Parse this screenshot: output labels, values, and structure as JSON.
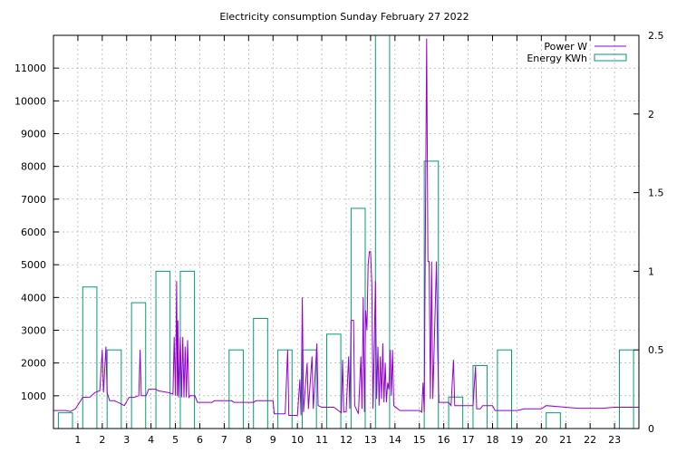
{
  "chart_data": {
    "type": "bar+line",
    "title": "Electricity consumption Sunday February 27 2022",
    "x": {
      "range": [
        0,
        24
      ],
      "ticks": [
        1,
        2,
        3,
        4,
        5,
        6,
        7,
        8,
        9,
        10,
        11,
        12,
        13,
        14,
        15,
        16,
        17,
        18,
        19,
        20,
        21,
        22,
        23
      ],
      "tick_labels": [
        "1",
        "2",
        "3",
        "4",
        "5",
        "6",
        "7",
        "8",
        "9",
        "10",
        "11",
        "12",
        "13",
        "14",
        "15",
        "16",
        "17",
        "18",
        "19",
        "20",
        "21",
        "22",
        "23"
      ]
    },
    "y_left": {
      "range": [
        0,
        12000
      ],
      "ticks": [
        1000,
        2000,
        3000,
        4000,
        5000,
        6000,
        7000,
        8000,
        9000,
        10000,
        11000
      ],
      "tick_labels": [
        "1000",
        "2000",
        "3000",
        "4000",
        "5000",
        "6000",
        "7000",
        "8000",
        "9000",
        "10000",
        "11000"
      ]
    },
    "y_right": {
      "range": [
        0,
        2.5
      ],
      "ticks": [
        0,
        0.5,
        1,
        1.5,
        2,
        2.5
      ],
      "tick_labels": [
        "0",
        "0.5",
        "1",
        "1.5",
        "2",
        "2.5"
      ]
    },
    "grid": true,
    "legend_position": "top-right",
    "series": [
      {
        "name": "Power W",
        "axis": "left",
        "color": "#9400d3",
        "points": [
          [
            0,
            550
          ],
          [
            0.5,
            550
          ],
          [
            0.7,
            520
          ],
          [
            0.9,
            600
          ],
          [
            1.2,
            950
          ],
          [
            1.5,
            960
          ],
          [
            1.7,
            1100
          ],
          [
            1.9,
            1150
          ],
          [
            2.0,
            2400
          ],
          [
            2.05,
            1100
          ],
          [
            2.15,
            2500
          ],
          [
            2.2,
            1100
          ],
          [
            2.3,
            850
          ],
          [
            2.5,
            850
          ],
          [
            2.7,
            780
          ],
          [
            2.9,
            700
          ],
          [
            3.1,
            950
          ],
          [
            3.3,
            950
          ],
          [
            3.5,
            1000
          ],
          [
            3.55,
            2400
          ],
          [
            3.6,
            1000
          ],
          [
            3.8,
            1000
          ],
          [
            3.9,
            1200
          ],
          [
            4.2,
            1200
          ],
          [
            4.3,
            1150
          ],
          [
            4.7,
            1100
          ],
          [
            4.9,
            1050
          ],
          [
            4.95,
            2800
          ],
          [
            5.0,
            1000
          ],
          [
            5.05,
            4500
          ],
          [
            5.08,
            1000
          ],
          [
            5.1,
            3300
          ],
          [
            5.13,
            950
          ],
          [
            5.2,
            2800
          ],
          [
            5.25,
            950
          ],
          [
            5.3,
            2800
          ],
          [
            5.35,
            950
          ],
          [
            5.4,
            2500
          ],
          [
            5.45,
            950
          ],
          [
            5.5,
            2700
          ],
          [
            5.55,
            950
          ],
          [
            5.6,
            1000
          ],
          [
            5.8,
            1000
          ],
          [
            5.9,
            800
          ],
          [
            6.5,
            800
          ],
          [
            6.6,
            850
          ],
          [
            7.3,
            850
          ],
          [
            7.4,
            800
          ],
          [
            8.2,
            800
          ],
          [
            8.3,
            850
          ],
          [
            9.0,
            850
          ],
          [
            9.05,
            450
          ],
          [
            9.5,
            450
          ],
          [
            9.6,
            2400
          ],
          [
            9.65,
            400
          ],
          [
            10.0,
            400
          ],
          [
            10.1,
            1500
          ],
          [
            10.15,
            400
          ],
          [
            10.2,
            4000
          ],
          [
            10.25,
            500
          ],
          [
            10.4,
            2000
          ],
          [
            10.45,
            600
          ],
          [
            10.6,
            2200
          ],
          [
            10.65,
            600
          ],
          [
            10.8,
            2600
          ],
          [
            10.85,
            700
          ],
          [
            11.0,
            650
          ],
          [
            11.5,
            650
          ],
          [
            11.8,
            480
          ],
          [
            11.85,
            2100
          ],
          [
            11.9,
            500
          ],
          [
            12.0,
            520
          ],
          [
            12.1,
            2200
          ],
          [
            12.15,
            600
          ],
          [
            12.2,
            3300
          ],
          [
            12.3,
            3300
          ],
          [
            12.35,
            700
          ],
          [
            12.5,
            450
          ],
          [
            12.6,
            2200
          ],
          [
            12.65,
            600
          ],
          [
            12.7,
            4000
          ],
          [
            12.75,
            500
          ],
          [
            12.8,
            3600
          ],
          [
            12.85,
            3000
          ],
          [
            12.9,
            5000
          ],
          [
            12.95,
            5400
          ],
          [
            13.0,
            5400
          ],
          [
            13.05,
            4400
          ],
          [
            13.1,
            600
          ],
          [
            13.2,
            4500
          ],
          [
            13.25,
            900
          ],
          [
            13.3,
            2500
          ],
          [
            13.35,
            700
          ],
          [
            13.4,
            2200
          ],
          [
            13.45,
            900
          ],
          [
            13.5,
            2600
          ],
          [
            13.55,
            800
          ],
          [
            13.6,
            2000
          ],
          [
            13.65,
            800
          ],
          [
            13.7,
            1400
          ],
          [
            13.75,
            1200
          ],
          [
            13.8,
            2400
          ],
          [
            13.85,
            1000
          ],
          [
            13.9,
            2400
          ],
          [
            13.95,
            700
          ],
          [
            14.2,
            550
          ],
          [
            15.0,
            550
          ],
          [
            15.1,
            500
          ],
          [
            15.15,
            1400
          ],
          [
            15.2,
            500
          ],
          [
            15.3,
            11900
          ],
          [
            15.35,
            5100
          ],
          [
            15.4,
            5100
          ],
          [
            15.45,
            900
          ],
          [
            15.5,
            5100
          ],
          [
            15.55,
            900
          ],
          [
            15.7,
            5100
          ],
          [
            15.75,
            2400
          ],
          [
            15.8,
            800
          ],
          [
            16.2,
            800
          ],
          [
            16.3,
            700
          ],
          [
            16.4,
            2100
          ],
          [
            16.45,
            700
          ],
          [
            17.2,
            700
          ],
          [
            17.3,
            1900
          ],
          [
            17.35,
            600
          ],
          [
            17.5,
            600
          ],
          [
            17.6,
            700
          ],
          [
            18.0,
            700
          ],
          [
            18.1,
            550
          ],
          [
            19.0,
            550
          ],
          [
            19.3,
            600
          ],
          [
            20.0,
            600
          ],
          [
            20.2,
            700
          ],
          [
            21.0,
            650
          ],
          [
            21.5,
            620
          ],
          [
            22.5,
            620
          ],
          [
            23.0,
            650
          ],
          [
            24.0,
            650
          ]
        ]
      },
      {
        "name": "Energy KWh",
        "axis": "right",
        "color": "#009e73",
        "type": "bar",
        "x": [
          0,
          1,
          2,
          3,
          4,
          5,
          6,
          7,
          8,
          9,
          10,
          11,
          12,
          13,
          14,
          15,
          16,
          17,
          18,
          19,
          20,
          21,
          22,
          23
        ],
        "values": [
          0.1,
          0.9,
          0.5,
          0.8,
          1.0,
          1.0,
          0.0,
          0.5,
          0.7,
          0.5,
          0.5,
          0.6,
          1.4,
          2.5,
          0.0,
          1.7,
          0.2,
          0.4,
          0.5,
          0.0,
          0.1,
          0.0,
          0.0,
          0.5
        ]
      }
    ]
  }
}
